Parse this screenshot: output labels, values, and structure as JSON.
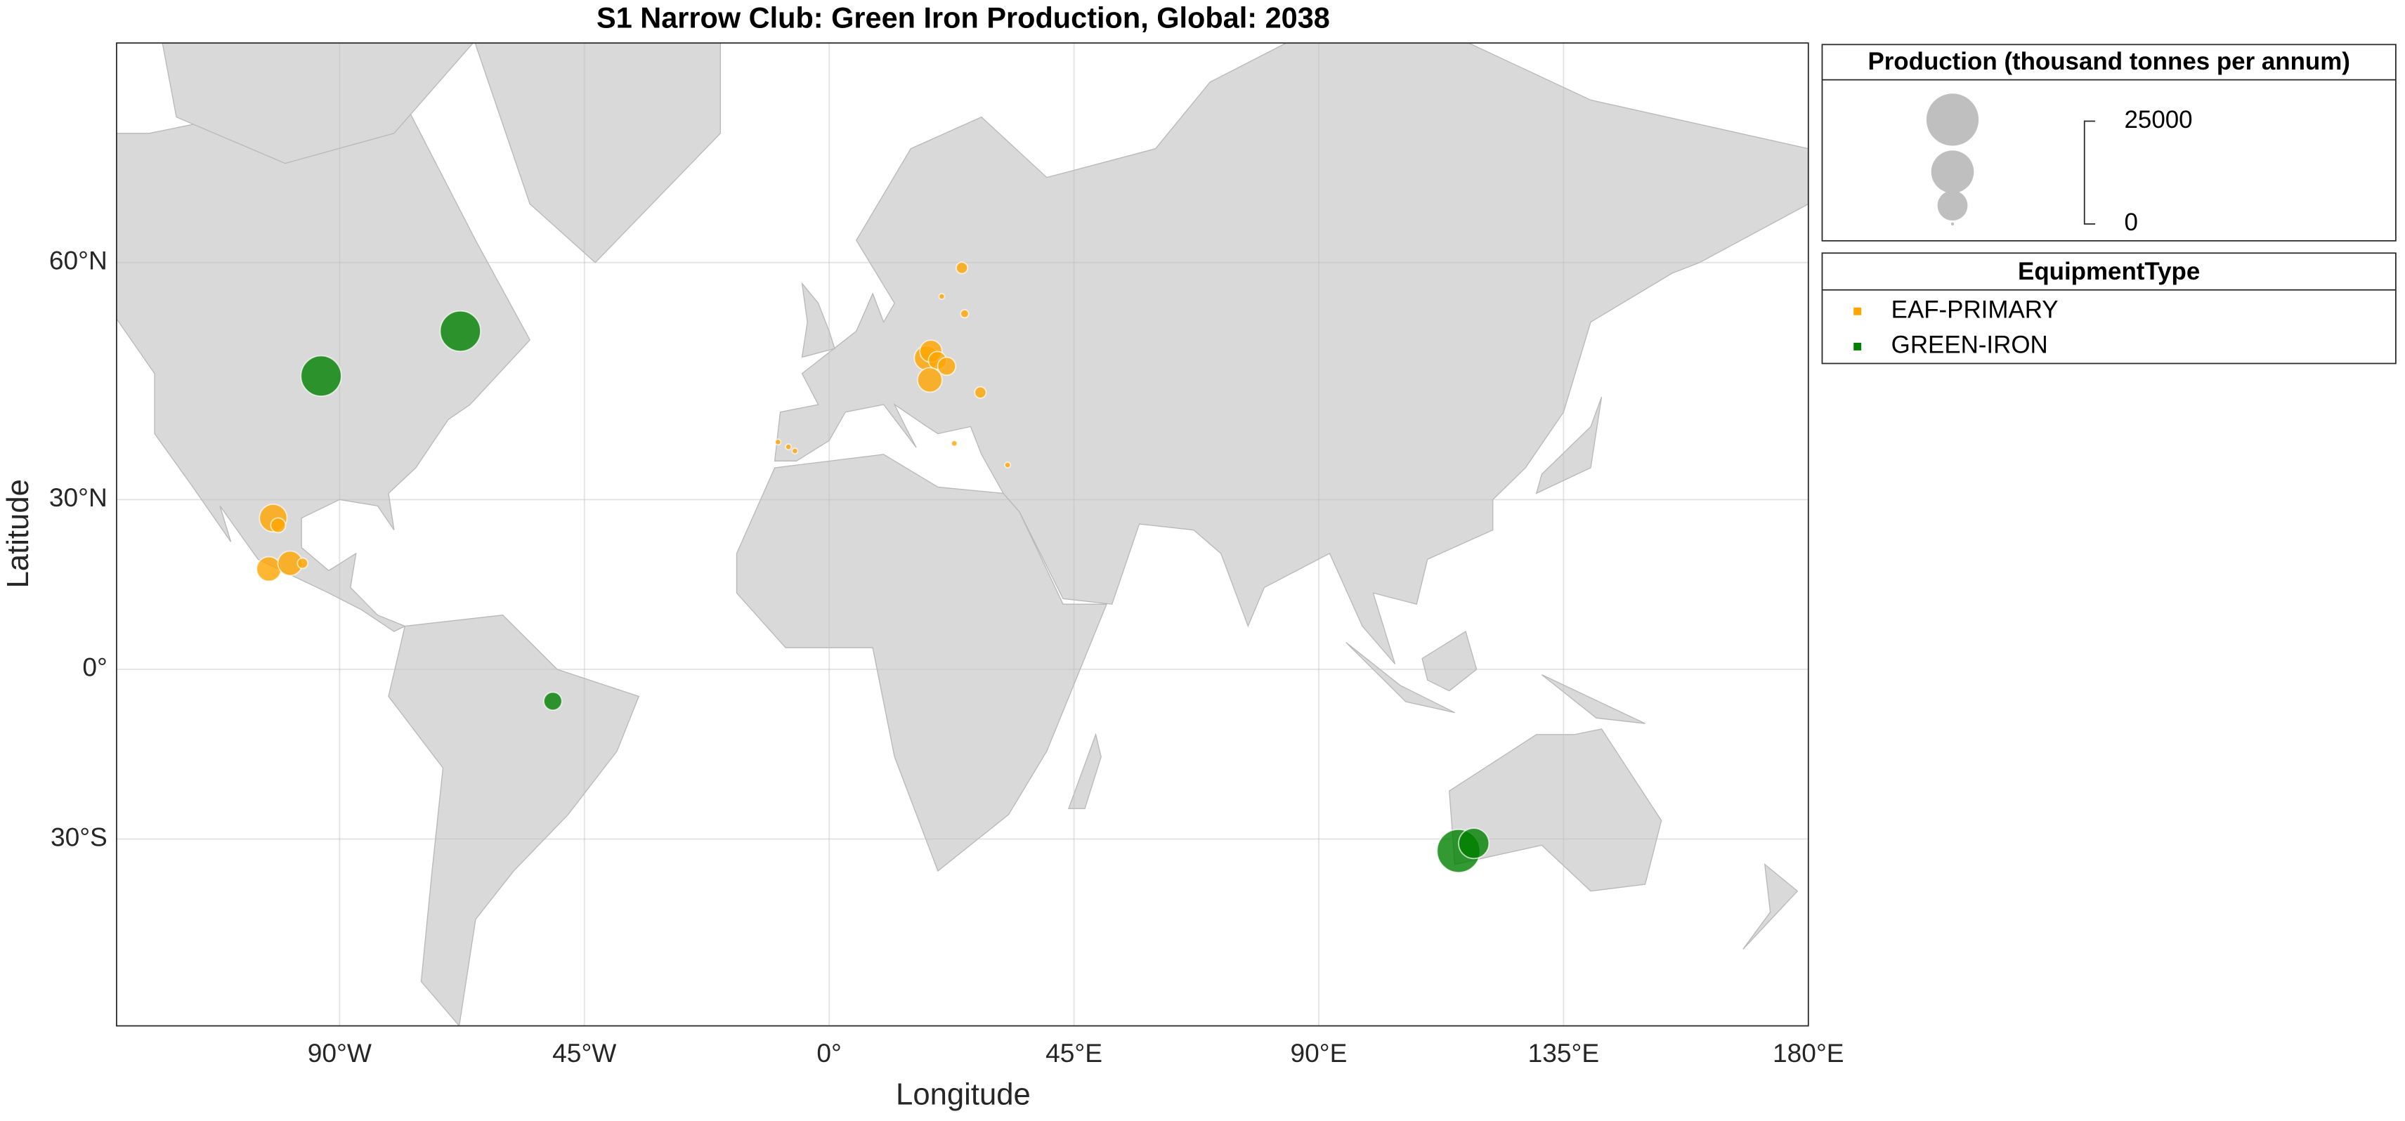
{
  "chart_data": {
    "type": "bubble-map",
    "title": "S1 Narrow Club: Green Iron Production, Global: 2038",
    "x_label": "Longitude",
    "y_label": "Latitude",
    "projection": "mercator",
    "xlim": [
      -131,
      180
    ],
    "ylim": [
      -55,
      75
    ],
    "xticks": [
      {
        "value": -90,
        "label": "90°W"
      },
      {
        "value": -45,
        "label": "45°W"
      },
      {
        "value": 0,
        "label": "0°"
      },
      {
        "value": 45,
        "label": "45°E"
      },
      {
        "value": 90,
        "label": "90°E"
      },
      {
        "value": 135,
        "label": "135°E"
      },
      {
        "value": 180,
        "label": "180°E"
      }
    ],
    "yticks": [
      {
        "value": -30,
        "label": "30°S"
      },
      {
        "value": 0,
        "label": "0°"
      },
      {
        "value": 30,
        "label": "30°N"
      },
      {
        "value": 60,
        "label": "60°N"
      }
    ],
    "grid": true,
    "size_legend_title": "Production (thousand tonnes per annum)",
    "size_ticks": [
      0,
      25000
    ],
    "color_legend_title": "EquipmentType",
    "series": [
      {
        "name": "EAF-PRIMARY",
        "color": "#ffa500",
        "x": [
          -102.2,
          -101.3,
          -103.0,
          -99.1,
          -96.8,
          24.4,
          20.7,
          24.9,
          17.9,
          18.7,
          19.9,
          21.6,
          18.5,
          27.8,
          -9.4,
          -7.5,
          -6.3,
          23.0,
          32.8
        ],
        "values": [
          27.0,
          25.8,
          18.3,
          19.3,
          19.3,
          59.5,
          56.7,
          54.9,
          49.9,
          50.7,
          49.6,
          48.9,
          47.2,
          45.6,
          38.8,
          38.1,
          37.5,
          38.6,
          35.4
        ],
        "sizes": [
          7000,
          2000,
          5500,
          5500,
          1000,
          1200,
          300,
          600,
          5500,
          4500,
          3000,
          3000,
          5500,
          1200,
          300,
          300,
          300,
          300,
          300
        ]
      },
      {
        "name": "GREEN-IRON",
        "color": "#008000",
        "x": [
          -93.4,
          -67.8,
          -50.8,
          115.7,
          118.5
        ],
        "values": [
          47.7,
          53.0,
          -5.9,
          -31.9,
          -30.7
        ],
        "sizes": [
          15000,
          15000,
          3000,
          17000,
          8500
        ]
      }
    ]
  }
}
